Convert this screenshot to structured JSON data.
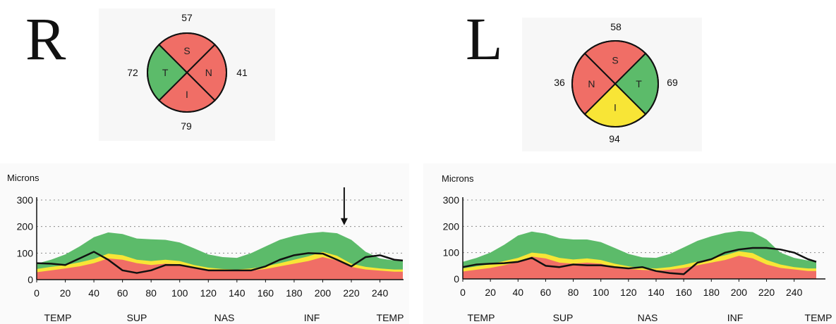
{
  "colors": {
    "red": "#f06e66",
    "yellow": "#f8e536",
    "green": "#5cbb6a",
    "line": "#111111"
  },
  "right_eye": {
    "letter": "R",
    "clock": {
      "quadrants": [
        {
          "label": "S",
          "color": "red"
        },
        {
          "label": "N",
          "color": "red"
        },
        {
          "label": "I",
          "color": "red"
        },
        {
          "label": "T",
          "color": "green"
        }
      ],
      "values": {
        "superior": "57",
        "nasal": "41",
        "inferior": "79",
        "temporal": "72"
      }
    }
  },
  "left_eye": {
    "letter": "L",
    "clock": {
      "quadrants": [
        {
          "label": "S",
          "color": "red"
        },
        {
          "label": "T",
          "color": "green"
        },
        {
          "label": "I",
          "color": "yellow"
        },
        {
          "label": "N",
          "color": "red"
        }
      ],
      "values": {
        "superior": "58",
        "temporal": "69",
        "inferior": "94",
        "nasal": "36"
      }
    }
  },
  "chart_data": [
    {
      "type": "area",
      "eye": "R",
      "ylabel": "Microns",
      "ylim": [
        0,
        300
      ],
      "yticks": [
        0,
        100,
        200,
        300
      ],
      "xlim": [
        0,
        256
      ],
      "xticks": [
        0,
        20,
        40,
        60,
        80,
        100,
        120,
        140,
        160,
        180,
        200,
        220,
        240
      ],
      "region_labels": [
        "TEMP",
        "SUP",
        "NAS",
        "INF",
        "TEMP"
      ],
      "grid": "dotted-horizontal",
      "annotation": {
        "type": "arrow",
        "x": 215
      },
      "x": [
        0,
        10,
        20,
        30,
        40,
        50,
        60,
        70,
        80,
        90,
        100,
        110,
        120,
        130,
        140,
        150,
        160,
        170,
        180,
        190,
        200,
        210,
        220,
        230,
        240,
        250,
        256
      ],
      "bands": {
        "red_top": [
          28,
          35,
          42,
          50,
          62,
          80,
          75,
          62,
          55,
          60,
          58,
          45,
          38,
          34,
          32,
          34,
          40,
          50,
          60,
          70,
          85,
          72,
          48,
          38,
          34,
          30,
          30
        ],
        "yellow_top": [
          40,
          48,
          55,
          65,
          78,
          98,
          92,
          75,
          70,
          75,
          70,
          55,
          45,
          40,
          38,
          42,
          50,
          62,
          75,
          88,
          105,
          90,
          60,
          48,
          42,
          38,
          38
        ],
        "green_top": [
          60,
          75,
          95,
          125,
          160,
          178,
          172,
          155,
          152,
          150,
          140,
          118,
          95,
          85,
          82,
          100,
          125,
          150,
          165,
          175,
          180,
          175,
          150,
          105,
          80,
          72,
          70
        ]
      },
      "measured": [
        62,
        60,
        55,
        80,
        105,
        75,
        35,
        25,
        35,
        55,
        55,
        45,
        35,
        35,
        35,
        35,
        50,
        75,
        92,
        100,
        98,
        75,
        50,
        85,
        92,
        75,
        72
      ]
    },
    {
      "type": "area",
      "eye": "L",
      "ylabel": "Microns",
      "ylim": [
        0,
        300
      ],
      "yticks": [
        0,
        100,
        200,
        300
      ],
      "xlim": [
        0,
        256
      ],
      "xticks": [
        0,
        20,
        40,
        60,
        80,
        100,
        120,
        140,
        160,
        180,
        200,
        220,
        240
      ],
      "region_labels": [
        "TEMP",
        "SUP",
        "NAS",
        "INF",
        "TEMP"
      ],
      "grid": "dotted-horizontal",
      "x": [
        0,
        10,
        20,
        30,
        40,
        50,
        60,
        70,
        80,
        90,
        100,
        110,
        120,
        130,
        140,
        150,
        160,
        170,
        180,
        190,
        200,
        210,
        220,
        230,
        240,
        250,
        256
      ],
      "bands": {
        "red_top": [
          28,
          35,
          42,
          52,
          65,
          85,
          78,
          62,
          58,
          62,
          58,
          45,
          38,
          34,
          32,
          35,
          42,
          52,
          62,
          72,
          88,
          78,
          55,
          42,
          36,
          30,
          30
        ],
        "yellow_top": [
          40,
          48,
          56,
          68,
          80,
          100,
          95,
          80,
          74,
          78,
          72,
          58,
          48,
          42,
          40,
          45,
          54,
          66,
          78,
          90,
          105,
          98,
          72,
          55,
          45,
          40,
          40
        ],
        "green_top": [
          65,
          80,
          100,
          130,
          165,
          180,
          172,
          155,
          150,
          150,
          140,
          118,
          95,
          82,
          80,
          95,
          120,
          145,
          162,
          175,
          182,
          178,
          150,
          100,
          80,
          70,
          68
        ]
      },
      "measured": [
        45,
        55,
        58,
        60,
        65,
        80,
        50,
        45,
        55,
        52,
        52,
        45,
        40,
        45,
        30,
        22,
        18,
        62,
        75,
        100,
        112,
        118,
        118,
        112,
        100,
        75,
        65
      ]
    }
  ],
  "axis_labels": {
    "microns": "Microns"
  }
}
